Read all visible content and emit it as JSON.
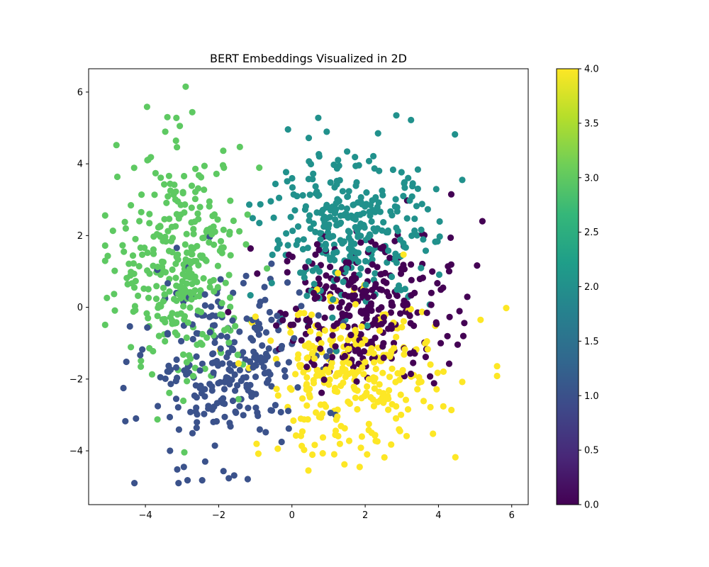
{
  "chart_data": {
    "type": "scatter",
    "title": "BERT Embeddings Visualized in 2D",
    "xlabel": "",
    "ylabel": "",
    "xlim": [
      -5.55,
      6.45
    ],
    "ylim": [
      -5.5,
      6.65
    ],
    "x_ticks": [
      -4,
      -2,
      0,
      2,
      4,
      6
    ],
    "y_ticks": [
      -4,
      -2,
      0,
      2,
      4,
      6
    ],
    "x_tick_labels": [
      "−4",
      "−2",
      "0",
      "2",
      "4",
      "6"
    ],
    "y_tick_labels": [
      "−4",
      "−2",
      "0",
      "2",
      "4",
      "6"
    ],
    "grid": false,
    "colorbar": {
      "label": "",
      "range": [
        0.0,
        4.0
      ],
      "ticks": [
        0.0,
        0.5,
        1.0,
        1.5,
        2.0,
        2.5,
        3.0,
        3.5,
        4.0
      ],
      "tick_labels": [
        "0.0",
        "0.5",
        "1.0",
        "1.5",
        "2.0",
        "2.5",
        "3.0",
        "3.5",
        "4.0"
      ],
      "colormap": "viridis",
      "stops": [
        "#440154",
        "#482878",
        "#3e4989",
        "#31688e",
        "#26828e",
        "#1f9e89",
        "#35b779",
        "#6ece58",
        "#b5de2b",
        "#fde725"
      ]
    },
    "clusters": [
      {
        "value": 0,
        "color": "#440154",
        "center": [
          2.0,
          0.0
        ],
        "spread": [
          1.15,
          1.0
        ],
        "count": 290
      },
      {
        "value": 1,
        "color": "#3b528b",
        "center": [
          -1.8,
          -1.6
        ],
        "spread": [
          1.1,
          1.2
        ],
        "count": 260
      },
      {
        "value": 2,
        "color": "#21918c",
        "center": [
          1.6,
          2.1
        ],
        "spread": [
          1.15,
          1.0
        ],
        "count": 320
      },
      {
        "value": 3,
        "color": "#5ec962",
        "center": [
          -3.0,
          1.2
        ],
        "spread": [
          0.85,
          1.55
        ],
        "count": 330
      },
      {
        "value": 4,
        "color": "#fde725",
        "center": [
          1.6,
          -2.0
        ],
        "spread": [
          1.2,
          1.05
        ],
        "count": 300
      }
    ],
    "points": [
      {
        "x": -2.9,
        "y": 6.15,
        "c": 3
      },
      {
        "x": 2.85,
        "y": 5.35,
        "c": 2
      },
      {
        "x": 0.72,
        "y": 5.28,
        "c": 2
      },
      {
        "x": 3.25,
        "y": 5.22,
        "c": 2
      },
      {
        "x": -3.4,
        "y": 5.3,
        "c": 3
      },
      {
        "x": 4.45,
        "y": 4.82,
        "c": 2
      },
      {
        "x": 2.35,
        "y": 4.85,
        "c": 2
      },
      {
        "x": 5.85,
        "y": -0.02,
        "c": 4
      },
      {
        "x": 5.2,
        "y": 2.4,
        "c": 0
      },
      {
        "x": 5.15,
        "y": -0.35,
        "c": 4
      },
      {
        "x": -4.3,
        "y": -4.9,
        "c": 1
      },
      {
        "x": -2.95,
        "y": -4.45,
        "c": 1
      },
      {
        "x": -2.85,
        "y": -4.82,
        "c": 1
      },
      {
        "x": -2.45,
        "y": -4.82,
        "c": 1
      },
      {
        "x": 0.45,
        "y": -4.55,
        "c": 4
      },
      {
        "x": 1.85,
        "y": -4.45,
        "c": 4
      },
      {
        "x": -4.6,
        "y": -2.25,
        "c": 1
      },
      {
        "x": -5.1,
        "y": 1.72,
        "c": 3
      },
      {
        "x": -5.05,
        "y": 0.26,
        "c": 3
      },
      {
        "x": 4.65,
        "y": -2.08,
        "c": 4
      },
      {
        "x": 4.35,
        "y": 3.15,
        "c": 0
      },
      {
        "x": 4.65,
        "y": 3.55,
        "c": 2
      }
    ]
  }
}
